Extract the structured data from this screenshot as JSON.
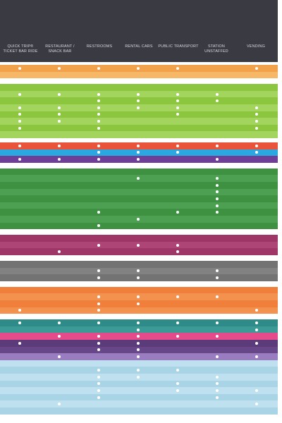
{
  "columns": [
    {
      "label": "QUICK TRIP® TICKET BAR RIDE"
    },
    {
      "label": "RESTAURANT / SNACK BAR"
    },
    {
      "label": "RESTROOMS"
    },
    {
      "label": "RENTAL CARS"
    },
    {
      "label": "PUBLIC TRANSPORT"
    },
    {
      "label": "STATION UNSTAFFED"
    },
    {
      "label": "VENDING"
    }
  ],
  "groups": [
    {
      "color": "#f2a24a",
      "alt": "#f6b766",
      "rows": [
        [
          1,
          1,
          1,
          1,
          1,
          0,
          1
        ],
        [
          0,
          0,
          0,
          0,
          0,
          0,
          0
        ]
      ]
    },
    {
      "color": "#8cc63f",
      "alt": "#a3d45d",
      "rows": [
        [
          0,
          0,
          0,
          0,
          0,
          0,
          0
        ],
        [
          1,
          1,
          1,
          1,
          1,
          1,
          0
        ],
        [
          0,
          0,
          1,
          1,
          1,
          1,
          0
        ],
        [
          1,
          1,
          1,
          1,
          1,
          0,
          1
        ],
        [
          1,
          1,
          1,
          0,
          1,
          0,
          1
        ],
        [
          1,
          1,
          1,
          0,
          0,
          0,
          1
        ],
        [
          1,
          0,
          1,
          0,
          0,
          0,
          1
        ],
        [
          0,
          0,
          0,
          0,
          0,
          0,
          0
        ]
      ]
    },
    {
      "color": "#e8533a",
      "alt": "#ee6a4f",
      "rows": [
        [
          1,
          1,
          1,
          1,
          1,
          1,
          1
        ]
      ]
    },
    {
      "color": "#2ba8e0",
      "alt": "#42b6e6",
      "rows": [
        [
          0,
          0,
          1,
          1,
          1,
          0,
          1
        ]
      ]
    },
    {
      "color": "#6f3f98",
      "alt": "#7d4da6",
      "rows": [
        [
          1,
          1,
          1,
          1,
          0,
          1,
          0
        ]
      ]
    },
    {
      "color": "#3f9142",
      "alt": "#4da051",
      "rows": [
        [
          0,
          0,
          0,
          0,
          0,
          0,
          0
        ],
        [
          0,
          0,
          0,
          1,
          0,
          1,
          0
        ],
        [
          0,
          0,
          0,
          0,
          0,
          1,
          0
        ],
        [
          0,
          0,
          0,
          0,
          0,
          1,
          0
        ],
        [
          0,
          0,
          0,
          0,
          0,
          1,
          0
        ],
        [
          0,
          0,
          0,
          0,
          0,
          1,
          0
        ],
        [
          0,
          0,
          1,
          0,
          1,
          1,
          0
        ],
        [
          0,
          0,
          0,
          1,
          0,
          0,
          0
        ],
        [
          0,
          0,
          1,
          0,
          0,
          0,
          0
        ]
      ]
    },
    {
      "color": "#9e3667",
      "alt": "#ad4576",
      "rows": [
        [
          0,
          0,
          0,
          0,
          0,
          0,
          0
        ],
        [
          0,
          0,
          1,
          1,
          1,
          0,
          0
        ],
        [
          0,
          1,
          0,
          0,
          1,
          0,
          0
        ]
      ]
    },
    {
      "color": "#737373",
      "alt": "#828282",
      "rows": [
        [
          0,
          0,
          0,
          0,
          0,
          0,
          0
        ],
        [
          0,
          0,
          1,
          1,
          0,
          1,
          0
        ],
        [
          0,
          0,
          1,
          1,
          0,
          1,
          0
        ]
      ]
    },
    {
      "color": "#f07f3c",
      "alt": "#f3914f",
      "rows": [
        [
          0,
          0,
          0,
          0,
          0,
          0,
          0
        ],
        [
          0,
          0,
          1,
          1,
          1,
          1,
          0
        ],
        [
          0,
          0,
          1,
          1,
          0,
          0,
          0
        ],
        [
          1,
          0,
          1,
          0,
          0,
          0,
          1
        ]
      ]
    },
    {
      "color": "#2e8b88",
      "alt": "#3b9a96",
      "rows": [
        [
          1,
          1,
          1,
          1,
          1,
          1,
          1
        ],
        [
          0,
          0,
          0,
          1,
          0,
          0,
          1
        ]
      ]
    },
    {
      "color": "#e54a8b",
      "alt": "#ea5f99",
      "rows": [
        [
          0,
          1,
          1,
          1,
          1,
          1,
          0
        ]
      ]
    },
    {
      "color": "#5b3b7a",
      "alt": "#684789",
      "rows": [
        [
          1,
          0,
          1,
          1,
          0,
          0,
          1
        ],
        [
          0,
          0,
          1,
          1,
          0,
          0,
          0
        ]
      ]
    },
    {
      "color": "#9a7cc0",
      "alt": "#a78ccb",
      "rows": [
        [
          0,
          1,
          0,
          1,
          0,
          1,
          1
        ]
      ]
    },
    {
      "color": "#bfe0ef",
      "alt": "#a9d4e6",
      "rows": [
        [
          0,
          0,
          0,
          0,
          0,
          0,
          0
        ],
        [
          0,
          0,
          1,
          1,
          1,
          0,
          0
        ],
        [
          0,
          0,
          1,
          1,
          0,
          1,
          0
        ],
        [
          0,
          0,
          1,
          0,
          1,
          1,
          0
        ],
        [
          0,
          0,
          1,
          0,
          1,
          1,
          1
        ],
        [
          0,
          0,
          1,
          0,
          0,
          1,
          0
        ],
        [
          0,
          1,
          0,
          0,
          0,
          0,
          1
        ],
        [
          0,
          0,
          0,
          0,
          0,
          0,
          0
        ]
      ]
    }
  ]
}
